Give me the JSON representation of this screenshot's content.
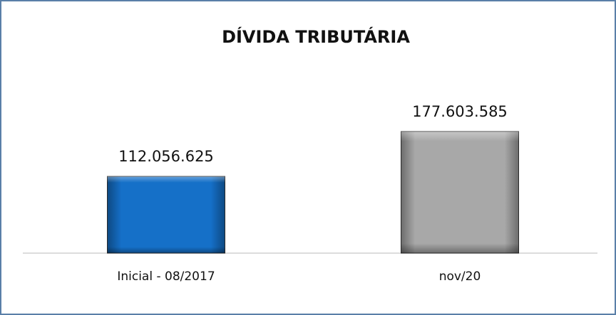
{
  "chart_data": {
    "type": "bar",
    "title": "DÍVIDA TRIBUTÁRIA",
    "categories": [
      "Inicial - 08/2017",
      "nov/20"
    ],
    "values": [
      112056625,
      177603585
    ],
    "value_labels": [
      "112.056.625",
      "177.603.585"
    ],
    "colors": [
      "#1570c8",
      "#a8a8a8"
    ]
  }
}
